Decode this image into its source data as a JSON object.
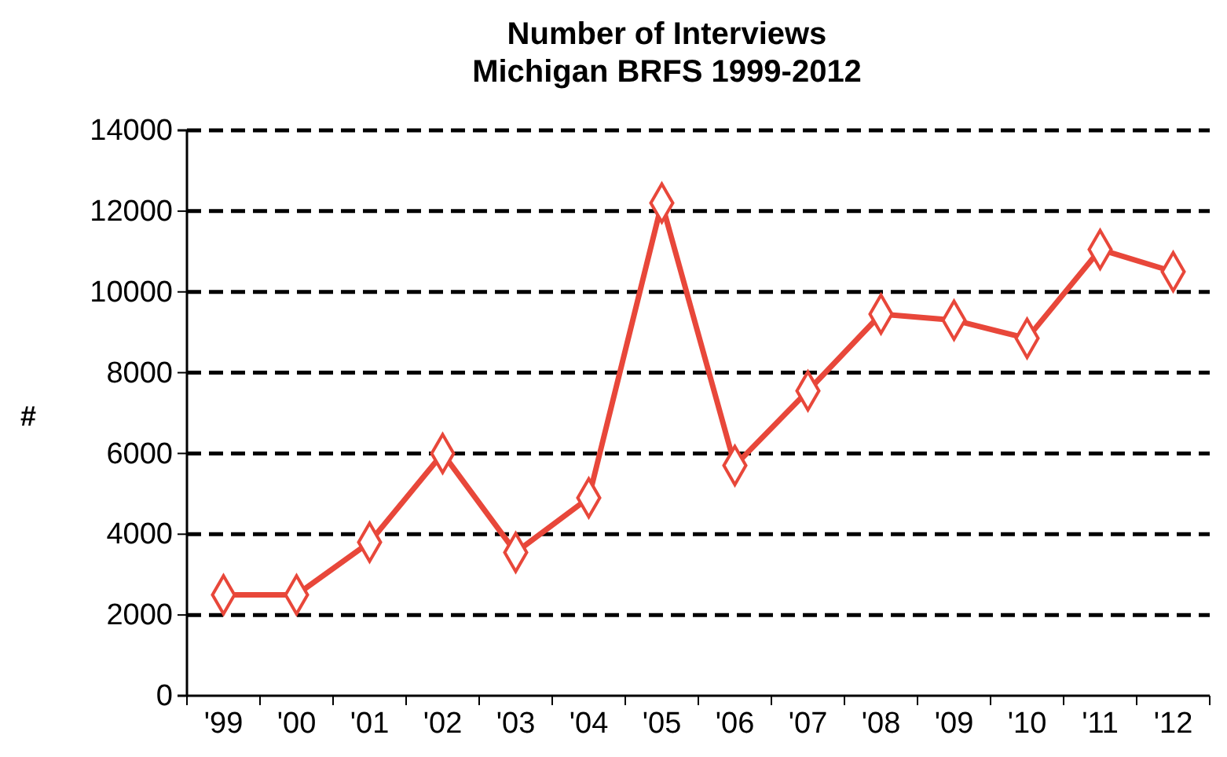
{
  "chart_data": {
    "type": "line",
    "title": "Number of Interviews\nMichigan BRFS 1999-2012",
    "ylabel": "#",
    "categories": [
      "'99",
      "'00",
      "'01",
      "'02",
      "'03",
      "'04",
      "'05",
      "'06",
      "'07",
      "'08",
      "'09",
      "'10",
      "'11",
      "'12"
    ],
    "series": [
      {
        "color": "#e8473a",
        "values": [
          2500,
          2500,
          3800,
          6000,
          3550,
          4900,
          12200,
          5700,
          7550,
          9450,
          9300,
          8850,
          11050,
          10500
        ]
      }
    ],
    "ylim": [
      0,
      14000
    ],
    "yticks": [
      0,
      2000,
      4000,
      6000,
      8000,
      10000,
      12000,
      14000
    ],
    "grid": "y",
    "marker": "diamond",
    "line_style": "solid",
    "legend": false
  }
}
